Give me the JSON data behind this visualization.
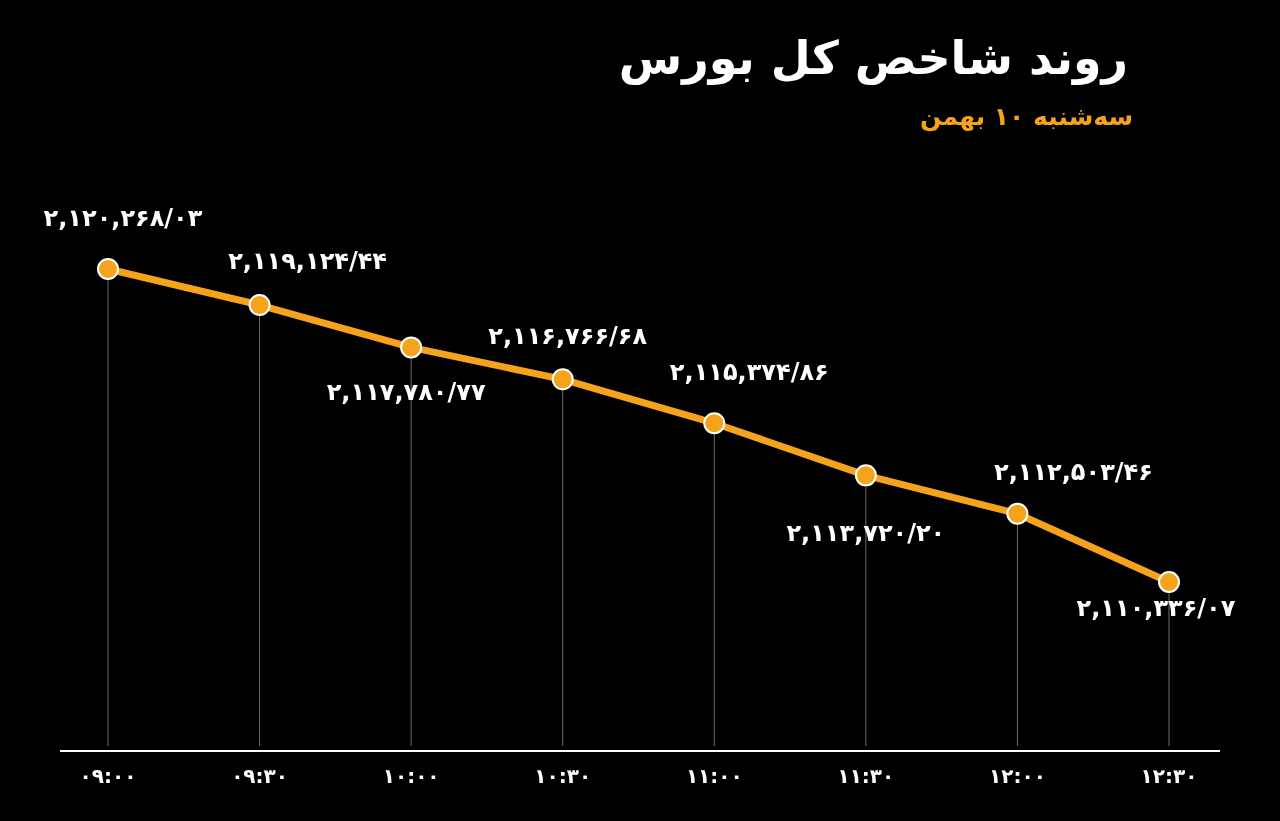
{
  "chart_data": {
    "type": "line",
    "title": "روند شاخص کل بورس",
    "subtitle": "سه‌شنبه ۱۰ بهمن",
    "categories": [
      "۰۹:۰۰",
      "۰۹:۳۰",
      "۱۰:۰۰",
      "۱۰:۳۰",
      "۱۱:۰۰",
      "۱۱:۳۰",
      "۱۲:۰۰",
      "۱۲:۳۰"
    ],
    "values": [
      2120268.03,
      2119124.44,
      2117780.77,
      2116766.68,
      2115374.86,
      2113720.2,
      2112503.46,
      2110336.07
    ],
    "color": "#f5a31a",
    "value_labels": [
      "۲,۱۲۰,۲۶۸/۰۳",
      "۲,۱۱۹,۱۲۴/۴۴",
      "۲,۱۱۷,۷۸۰/۷۷",
      "۲,۱۱۶,۷۶۶/۶۸",
      "۲,۱۱۵,۳۷۴/۸۶",
      "۲,۱۱۳,۷۲۰/۲۰",
      "۲,۱۱۲,۵۰۳/۴۶",
      "۲,۱۱۰,۳۳۶/۰۷"
    ],
    "marker": "circle",
    "line_style": "solid",
    "grid": "x",
    "tick_labels": "x"
  }
}
